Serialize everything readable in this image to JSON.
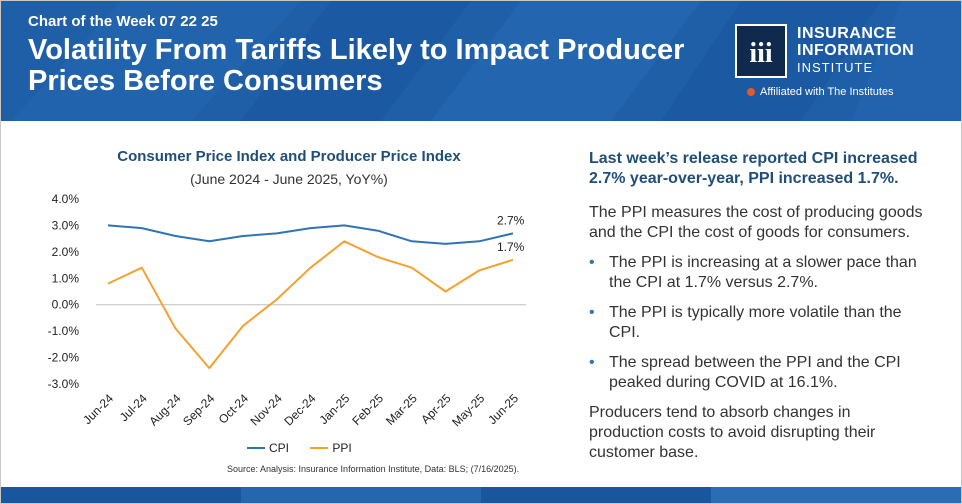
{
  "header": {
    "eyebrow": "Chart of the Week 07 22 25",
    "title": "Volatility From Tariffs Likely to Impact Producer Prices Before Consumers",
    "logo_line1": "INSURANCE",
    "logo_line2": "INFORMATION",
    "logo_line3": "INSTITUTE",
    "logo_mark": "iii",
    "affiliation": "Affiliated with The Institutes"
  },
  "chart_data": {
    "type": "line",
    "title": "Consumer Price Index and Producer Price Index",
    "subtitle": "(June 2024 - June 2025, YoY%)",
    "categories": [
      "Jun-24",
      "Jul-24",
      "Aug-24",
      "Sep-24",
      "Oct-24",
      "Nov-24",
      "Dec-24",
      "Jan-25",
      "Feb-25",
      "Mar-25",
      "Apr-25",
      "May-25",
      "Jun-25"
    ],
    "series": [
      {
        "name": "CPI",
        "color": "#2f75b5",
        "values": [
          3.0,
          2.9,
          2.6,
          2.4,
          2.6,
          2.7,
          2.9,
          3.0,
          2.8,
          2.4,
          2.3,
          2.4,
          2.7
        ],
        "end_label": "2.7%"
      },
      {
        "name": "PPI",
        "color": "#f4a12d",
        "values": [
          0.8,
          1.4,
          -0.9,
          -2.4,
          -0.8,
          0.2,
          1.4,
          2.4,
          1.8,
          1.4,
          0.5,
          1.3,
          1.7
        ],
        "end_label": "1.7%"
      }
    ],
    "y_ticks": [
      "4.0%",
      "3.0%",
      "2.0%",
      "1.0%",
      "0.0%",
      "-1.0%",
      "-2.0%",
      "-3.0%"
    ],
    "ylim": [
      -3,
      4
    ],
    "xlabel": "",
    "ylabel": ""
  },
  "source": "Source: Analysis: Insurance Information Institute, Data: BLS; (7/16/2025).",
  "commentary": {
    "lead": "Last week’s release reported CPI increased 2.7% year-over-year, PPI increased 1.7%.",
    "intro": "The PPI measures the cost of producing goods and the CPI the cost of goods for consumers.",
    "bullets": [
      "The PPI is increasing at a slower pace than the CPI at 1.7% versus 2.7%.",
      "The PPI is typically more volatile than the CPI.",
      "The spread between the PPI and the CPI peaked during COVID at 16.1%."
    ],
    "bullet_glyph": "•",
    "closing": "Producers tend to absorb changes in production costs to avoid disrupting their customer base."
  },
  "colors": {
    "header_bg": "#1f5fa8",
    "cpi": "#2f75b5",
    "ppi": "#f4a12d"
  }
}
